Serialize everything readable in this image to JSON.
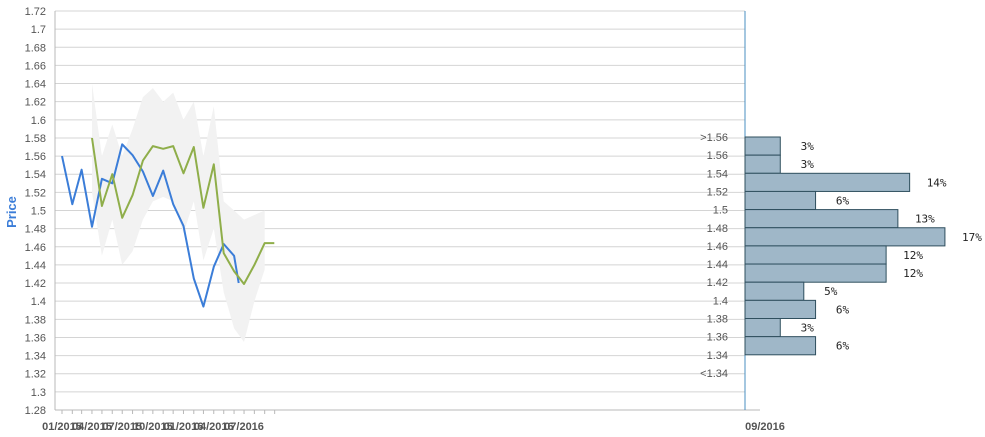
{
  "chart_data": {
    "type": "line",
    "ylabel": "Price",
    "ylim": [
      1.28,
      1.72
    ],
    "y_ticks": [
      "1.28",
      "1.3",
      "1.32",
      "1.34",
      "1.36",
      "1.38",
      "1.4",
      "1.42",
      "1.44",
      "1.46",
      "1.48",
      "1.5",
      "1.52",
      "1.54",
      "1.56",
      "1.58",
      "1.6",
      "1.62",
      "1.64",
      "1.66",
      "1.68",
      "1.7",
      "1.72"
    ],
    "x_tick_labels": [
      "01/2015",
      "04/2015",
      "07/2015",
      "10/2015",
      "01/2016",
      "04/2016",
      "07/2016",
      "09/2016"
    ],
    "grid": true,
    "series": [
      {
        "color": "#3b7dd8",
        "points": [
          [
            "2015-01",
            1.56
          ],
          [
            "2015-02",
            1.507
          ],
          [
            "2015-03",
            1.545
          ],
          [
            "2015-04",
            1.482
          ],
          [
            "2015-05",
            1.535
          ],
          [
            "2015-06",
            1.53
          ],
          [
            "2015-07",
            1.573
          ],
          [
            "2015-08",
            1.561
          ],
          [
            "2015-09",
            1.543
          ],
          [
            "2015-10",
            1.516
          ],
          [
            "2015-11",
            1.544
          ],
          [
            "2015-12",
            1.507
          ],
          [
            "2016-01",
            1.483
          ],
          [
            "2016-02",
            1.425
          ],
          [
            "2016-03",
            1.394
          ],
          [
            "2016-04",
            1.438
          ],
          [
            "2016-05",
            1.463
          ],
          [
            "2016-06",
            1.45
          ],
          [
            "2016-06-15",
            1.42
          ]
        ]
      },
      {
        "color": "#8fae4a",
        "points": [
          [
            "2015-04",
            1.58
          ],
          [
            "2015-05",
            1.505
          ],
          [
            "2015-06",
            1.54
          ],
          [
            "2015-07",
            1.492
          ],
          [
            "2015-08",
            1.517
          ],
          [
            "2015-09",
            1.555
          ],
          [
            "2015-10",
            1.571
          ],
          [
            "2015-11",
            1.568
          ],
          [
            "2015-12",
            1.571
          ],
          [
            "2016-01",
            1.541
          ],
          [
            "2016-02",
            1.57
          ],
          [
            "2016-03",
            1.503
          ],
          [
            "2016-04",
            1.551
          ],
          [
            "2016-05",
            1.453
          ],
          [
            "2016-06",
            1.433
          ],
          [
            "2016-07",
            1.419
          ],
          [
            "2016-08",
            1.44
          ],
          [
            "2016-09",
            1.464
          ],
          [
            "2016-09-30",
            1.464
          ]
        ]
      }
    ],
    "band": {
      "color": "#f2f2f2",
      "points": [
        [
          "2015-04",
          1.64,
          1.52
        ],
        [
          "2015-05",
          1.56,
          1.45
        ],
        [
          "2015-06",
          1.595,
          1.49
        ],
        [
          "2015-07",
          1.56,
          1.44
        ],
        [
          "2015-08",
          1.59,
          1.455
        ],
        [
          "2015-09",
          1.625,
          1.49
        ],
        [
          "2015-10",
          1.635,
          1.51
        ],
        [
          "2015-11",
          1.62,
          1.515
        ],
        [
          "2015-12",
          1.63,
          1.51
        ],
        [
          "2016-01",
          1.6,
          1.475
        ],
        [
          "2016-02",
          1.62,
          1.51
        ],
        [
          "2016-03",
          1.56,
          1.445
        ],
        [
          "2016-04",
          1.615,
          1.48
        ],
        [
          "2016-05",
          1.51,
          1.41
        ],
        [
          "2016-06",
          1.5,
          1.37
        ],
        [
          "2016-07",
          1.49,
          1.355
        ],
        [
          "2016-08",
          1.495,
          1.4
        ],
        [
          "2016-09",
          1.5,
          1.435
        ]
      ]
    },
    "distribution": {
      "color": "#9fb7c8",
      "rows": [
        {
          "label": ">1.56",
          "pct": "3%",
          "value": 3
        },
        {
          "label": "1.56",
          "pct": "3%",
          "value": 3
        },
        {
          "label": "1.54",
          "pct": "14%",
          "value": 14
        },
        {
          "label": "1.52",
          "pct": "6%",
          "value": 6
        },
        {
          "label": "1.5",
          "pct": "13%",
          "value": 13
        },
        {
          "label": "1.48",
          "pct": "17%",
          "value": 17
        },
        {
          "label": "1.46",
          "pct": "12%",
          "value": 12
        },
        {
          "label": "1.44",
          "pct": "12%",
          "value": 12
        },
        {
          "label": "1.42",
          "pct": "5%",
          "value": 5
        },
        {
          "label": "1.4",
          "pct": "6%",
          "value": 6
        },
        {
          "label": "1.38",
          "pct": "3%",
          "value": 3
        },
        {
          "label": "1.36",
          "pct": "6%",
          "value": 6
        },
        {
          "label": "1.34",
          "pct": "",
          "value": 0
        },
        {
          "label": "<1.34",
          "pct": "",
          "value": 0
        }
      ]
    }
  }
}
